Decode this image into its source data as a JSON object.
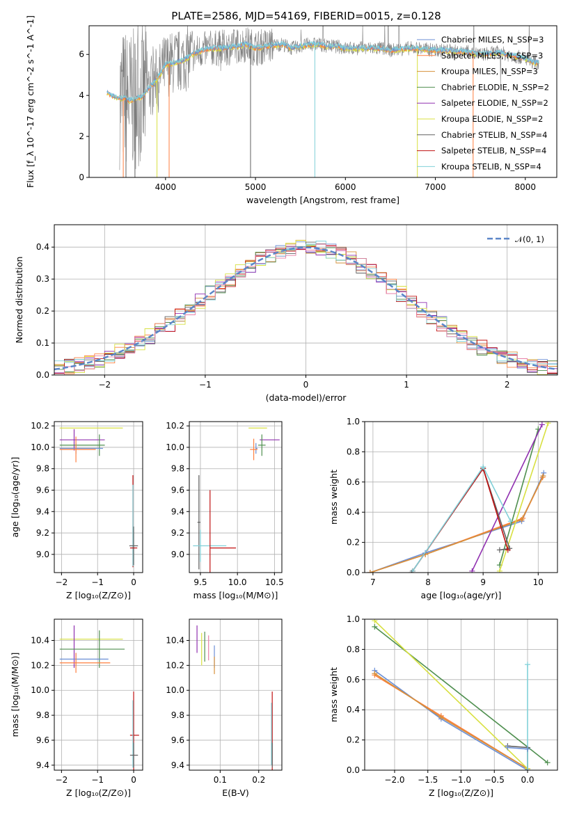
{
  "title": "PLATE=2586, MJD=54169, FIBERID=0015, z=0.128",
  "series_names": [
    "Chabrier MILES, N_SSP=3",
    "Salpeter MILES, N_SSP=3",
    "Kroupa MILES, N_SSP=3",
    "Chabrier ELODIE, N_SSP=2",
    "Salpeter ELODIE, N_SSP=2",
    "Kroupa ELODIE, N_SSP=2",
    "Chabrier STELIB, N_SSP=4",
    "Salpeter STELIB, N_SSP=4",
    "Kroupa STELIB, N_SSP=4"
  ],
  "colors": {
    "chabrier_miles": "#6b8fd6",
    "salpeter_miles": "#ff7f3f",
    "kroupa_miles": "#d6903a",
    "chabrier_elodie": "#4f8f4f",
    "salpeter_elodie": "#9030b0",
    "kroupa_elodie": "#d8e040",
    "chabrier_stelib": "#606060",
    "salpeter_stelib": "#c01010",
    "kroupa_stelib": "#80d0d8",
    "normal": "#5b86c8",
    "pink": "#e880a8",
    "data": "#808080"
  },
  "chart_data": [
    {
      "id": "spectrum",
      "type": "line",
      "title": "PLATE=2586, MJD=54169, FIBERID=0015, z=0.128",
      "xlabel": "wavelength [Angstrom, rest frame]",
      "ylabel": "Flux [f_λ 10^-17 erg cm^-2 s^-1 A^-1]",
      "xlim": [
        3150,
        8350
      ],
      "ylim": [
        0,
        7.4
      ],
      "xticks": [
        "4000",
        "5000",
        "6000",
        "7000",
        "8000"
      ],
      "yticks": [
        "0",
        "2",
        "4",
        "6"
      ],
      "legend_position": "top-right",
      "model_curve": {
        "x": [
          3350,
          3400,
          3450,
          3500,
          3550,
          3600,
          3650,
          3700,
          3750,
          3800,
          3850,
          3900,
          3950,
          4000,
          4100,
          4200,
          4300,
          4400,
          4500,
          4600,
          4700,
          4800,
          4900,
          5000,
          5100,
          5200,
          5300,
          5400,
          5500,
          5600,
          5700,
          5800,
          5900,
          6000,
          6100,
          6200,
          6300,
          6400,
          6500,
          6600,
          6700,
          6800,
          6900,
          7000,
          7100,
          7200,
          7300,
          7400,
          7500,
          7600,
          7700,
          7800,
          7900,
          8000,
          8100,
          8150
        ],
        "y": [
          4.15,
          4.0,
          3.9,
          3.85,
          3.9,
          3.75,
          3.8,
          3.9,
          3.95,
          4.3,
          4.5,
          4.8,
          5.1,
          5.5,
          5.6,
          5.7,
          6.0,
          6.2,
          6.3,
          6.3,
          6.35,
          6.4,
          6.5,
          6.3,
          6.4,
          6.45,
          6.5,
          6.3,
          6.4,
          6.5,
          6.5,
          6.4,
          6.4,
          6.3,
          6.3,
          6.3,
          6.3,
          6.3,
          6.2,
          6.25,
          6.3,
          6.3,
          6.25,
          6.2,
          6.2,
          6.15,
          6.15,
          6.1,
          6.0,
          6.05,
          6.1,
          6.0,
          5.9,
          5.8,
          5.6,
          5.6
        ]
      }
    },
    {
      "id": "residuals",
      "type": "line",
      "xlabel": "(data-model)/error",
      "ylabel": "Normed distribution",
      "xlim": [
        -2.5,
        2.5
      ],
      "ylim": [
        0,
        0.47
      ],
      "xticks": [
        "−2",
        "−1",
        "0",
        "1",
        "2"
      ],
      "yticks": [
        "0.0",
        "0.1",
        "0.2",
        "0.3",
        "0.4"
      ],
      "legend_position": "top-right",
      "series": [
        {
          "name": "𝒩(0, 1)",
          "function": "normal",
          "mean": 0,
          "sigma": 1
        }
      ],
      "bin_width": 0.1,
      "bin_start": -2.5
    },
    {
      "id": "age_vs_Z",
      "type": "scatter",
      "xlabel": "Z [log₁₀(Z/Z⊙)]",
      "ylabel": "age  [log₁₀(age/yr)]",
      "xlim": [
        -2.2,
        0.25
      ],
      "ylim": [
        8.83,
        10.24
      ],
      "xticks": [
        "−2",
        "−1",
        "0"
      ],
      "yticks": [
        "9.0",
        "9.2",
        "9.4",
        "9.6",
        "9.8",
        "10.0",
        "10.2"
      ],
      "points": [
        {
          "s": "kroupa_elodie",
          "x": -2.05,
          "xerr": [
            0.0,
            1.75
          ],
          "y": 10.18,
          "yerr": 0
        },
        {
          "s": "salpeter_elodie",
          "x": -1.65,
          "xerr": [
            0.4,
            0.85
          ],
          "y": 10.07,
          "yerr": 0.1
        },
        {
          "s": "chabrier_elodie",
          "x": -0.95,
          "xerr": [
            1.1,
            0.15
          ],
          "y": 10.02,
          "yerr": 0.1
        },
        {
          "s": "chabrier_miles",
          "x": -1.6,
          "xerr": [
            0.45,
            0.75
          ],
          "y": 9.99,
          "yerr": 0.05
        },
        {
          "s": "salpeter_miles",
          "x": -1.6,
          "xerr": [
            0.45,
            0.55
          ],
          "y": 9.98,
          "yerr": 0.12
        },
        {
          "s": "salpeter_stelib",
          "x": -0.02,
          "xerr": [
            0,
            0
          ],
          "y": 9.31,
          "yerr": 0.43
        },
        {
          "s": "kroupa_stelib",
          "x": -0.02,
          "xerr": [
            0,
            0
          ],
          "y": 9.27,
          "yerr": 0.38
        },
        {
          "s": "chabrier_stelib",
          "x": 0.0,
          "xerr": [
            0.12,
            0.12
          ],
          "y": 9.08,
          "yerr": 0.18
        },
        {
          "s": "salpeter_stelib",
          "x": 0.0,
          "xerr": [
            0.1,
            0.1
          ],
          "y": 9.06,
          "yerr": 0.0
        }
      ]
    },
    {
      "id": "age_vs_mass",
      "type": "scatter",
      "xlabel": "mass [log₁₀(M/M⊙)]",
      "ylabel": "",
      "xlim": [
        9.35,
        10.6
      ],
      "ylim": [
        8.83,
        10.24
      ],
      "xticks": [
        "9.5",
        "10.0",
        "10.5"
      ],
      "yticks": [
        "9.0",
        "9.2",
        "9.4",
        "9.6",
        "9.8",
        "10.0",
        "10.2"
      ],
      "points": [
        {
          "s": "kroupa_elodie",
          "x": 10.35,
          "xerr": [
            0.2,
            0.05
          ],
          "y": 10.18,
          "yerr": 0
        },
        {
          "s": "salpeter_elodie",
          "x": 10.5,
          "xerr": [
            0.2,
            0.07
          ],
          "y": 10.07,
          "yerr": 0
        },
        {
          "s": "chabrier_elodie",
          "x": 10.33,
          "xerr": [
            0.05,
            0.05
          ],
          "y": 10.02,
          "yerr": 0.1
        },
        {
          "s": "chabrier_miles",
          "x": 10.25,
          "xerr": [
            0.0,
            0.02
          ],
          "y": 9.99,
          "yerr": 0.05
        },
        {
          "s": "salpeter_miles",
          "x": 10.22,
          "xerr": [
            0.05,
            0.05
          ],
          "y": 9.98,
          "yerr": 0.1
        },
        {
          "s": "chabrier_stelib",
          "x": 9.48,
          "xerr": [
            0.02,
            0.02
          ],
          "y": 9.3,
          "yerr": 0.44
        },
        {
          "s": "kroupa_stelib",
          "x": 9.5,
          "xerr": [
            0.1,
            0.35
          ],
          "y": 9.08,
          "yerr": 0.15
        },
        {
          "s": "salpeter_stelib",
          "x": 9.63,
          "xerr": [
            0.0,
            0.35
          ],
          "y": 9.06,
          "yerr": 0.54
        }
      ]
    },
    {
      "id": "massweight_vs_age",
      "type": "line",
      "xlabel": "age  [log₁₀(age/yr)]",
      "ylabel": "mass weight",
      "xlim": [
        6.85,
        10.35
      ],
      "ylim": [
        0,
        1
      ],
      "xticks": [
        "7",
        "8",
        "9",
        "10"
      ],
      "yticks": [
        "0.0",
        "0.2",
        "0.4",
        "0.6",
        "0.8",
        "1.0"
      ],
      "series": [
        {
          "s": "chabrier_miles",
          "x": [
            6.95,
            7.95,
            9.7,
            10.1
          ],
          "y": [
            0.0,
            0.13,
            0.34,
            0.66
          ]
        },
        {
          "s": "salpeter_miles",
          "x": [
            6.95,
            7.95,
            9.72,
            10.08
          ],
          "y": [
            0.0,
            0.12,
            0.36,
            0.63
          ]
        },
        {
          "s": "kroupa_miles",
          "x": [
            6.95,
            7.95,
            9.7,
            10.09
          ],
          "y": [
            0.0,
            0.12,
            0.35,
            0.64
          ]
        },
        {
          "s": "chabrier_elodie",
          "x": [
            9.3,
            10.0
          ],
          "y": [
            0.05,
            0.95
          ]
        },
        {
          "s": "salpeter_elodie",
          "x": [
            8.8,
            10.07
          ],
          "y": [
            0.01,
            0.98
          ]
        },
        {
          "s": "kroupa_elodie",
          "x": [
            9.3,
            10.18
          ],
          "y": [
            0.01,
            0.99
          ]
        },
        {
          "s": "chabrier_stelib",
          "x": [
            7.7,
            9.0,
            9.48,
            9.3
          ],
          "y": [
            0.0,
            0.69,
            0.16,
            0.15
          ]
        },
        {
          "s": "salpeter_stelib",
          "x": [
            7.72,
            9.0,
            9.45
          ],
          "y": [
            0.01,
            0.69,
            0.15
          ]
        },
        {
          "s": "kroupa_stelib",
          "x": [
            7.72,
            9.0,
            9.5
          ],
          "y": [
            0.01,
            0.7,
            0.34
          ]
        }
      ]
    },
    {
      "id": "mass_vs_Z",
      "type": "scatter",
      "xlabel": "Z [log₁₀(Z/Z⊙)]",
      "ylabel": "mass [log₁₀(M/M⊙)]",
      "xlim": [
        -2.2,
        0.25
      ],
      "ylim": [
        9.36,
        10.57
      ],
      "xticks": [
        "−2",
        "−1",
        "0"
      ],
      "yticks": [
        "9.4",
        "9.6",
        "9.8",
        "10.0",
        "10.2",
        "10.4"
      ],
      "points": [
        {
          "s": "kroupa_elodie",
          "x": -2.05,
          "xerr": [
            0.0,
            1.75
          ],
          "y": 10.41,
          "yerr": 0
        },
        {
          "s": "salpeter_elodie",
          "x": -1.65,
          "xerr": [
            0,
            0
          ],
          "y": 10.35,
          "yerr": 0.17
        },
        {
          "s": "chabrier_elodie",
          "x": -0.95,
          "xerr": [
            1.1,
            0.7
          ],
          "y": 10.33,
          "yerr": 0.15
        },
        {
          "s": "chabrier_miles",
          "x": -1.6,
          "xerr": [
            0.45,
            0.9
          ],
          "y": 10.25,
          "yerr": 0.05
        },
        {
          "s": "salpeter_miles",
          "x": -1.6,
          "xerr": [
            0.45,
            0.95
          ],
          "y": 10.22,
          "yerr": 0.08
        },
        {
          "s": "salpeter_stelib",
          "x": 0.0,
          "xerr": [
            0.1,
            0.15
          ],
          "y": 9.64,
          "yerr": 0.35
        },
        {
          "s": "kroupa_stelib",
          "x": -0.02,
          "xerr": [
            0,
            0
          ],
          "y": 9.65,
          "yerr": 0.27
        },
        {
          "s": "chabrier_stelib",
          "x": 0.0,
          "xerr": [
            0.1,
            0.12
          ],
          "y": 9.48,
          "yerr": 0.1
        }
      ]
    },
    {
      "id": "mass_vs_ebv",
      "type": "scatter",
      "xlabel": "E(B-V)",
      "ylabel": "",
      "xlim": [
        0.02,
        0.26
      ],
      "ylim": [
        9.36,
        10.57
      ],
      "xticks": [
        "0.1",
        "0.2"
      ],
      "yticks": [
        "9.4",
        "9.6",
        "9.8",
        "10.0",
        "10.2",
        "10.4"
      ],
      "points": [
        {
          "s": "salpeter_elodie",
          "x": 0.04,
          "xerr": [
            0,
            0
          ],
          "y": 10.41,
          "yerr": 0.11
        },
        {
          "s": "kroupa_elodie",
          "x": 0.052,
          "xerr": [
            0,
            0
          ],
          "y": 10.33,
          "yerr": 0.13
        },
        {
          "s": "chabrier_elodie",
          "x": 0.06,
          "xerr": [
            0,
            0
          ],
          "y": 10.35,
          "yerr": 0.12
        },
        {
          "s": "pink",
          "x": 0.07,
          "xerr": [
            0,
            0
          ],
          "y": 10.34,
          "yerr": 0.1
        },
        {
          "s": "chabrier_miles",
          "x": 0.085,
          "xerr": [
            0,
            0
          ],
          "y": 10.27,
          "yerr": 0.09
        },
        {
          "s": "kroupa_miles",
          "x": 0.085,
          "xerr": [
            0,
            0
          ],
          "y": 10.2,
          "yerr": 0.07
        },
        {
          "s": "salpeter_stelib",
          "x": 0.235,
          "xerr": [
            0,
            0
          ],
          "y": 9.64,
          "yerr": 0.35
        },
        {
          "s": "kroupa_stelib",
          "x": 0.233,
          "xerr": [
            0,
            0
          ],
          "y": 9.65,
          "yerr": 0.25
        },
        {
          "s": "chabrier_stelib",
          "x": 0.235,
          "xerr": [
            0,
            0
          ],
          "y": 9.48,
          "yerr": 0.1
        }
      ]
    },
    {
      "id": "massweight_vs_Z",
      "type": "line",
      "xlabel": "Z [log₁₀(Z/Z⊙)]",
      "ylabel": "mass weight",
      "xlim": [
        -2.45,
        0.45
      ],
      "ylim": [
        0,
        1
      ],
      "xticks": [
        "−2.0",
        "−1.5",
        "−1.0",
        "−0.5",
        "0.0"
      ],
      "yticks": [
        "0.0",
        "0.2",
        "0.4",
        "0.6",
        "0.8",
        "1.0"
      ],
      "series": [
        {
          "s": "chabrier_miles",
          "x": [
            -2.3,
            -1.3,
            0.0
          ],
          "y": [
            0.66,
            0.34,
            0.0
          ]
        },
        {
          "s": "salpeter_miles",
          "x": [
            -2.3,
            -1.3,
            0.0
          ],
          "y": [
            0.63,
            0.36,
            0.01
          ]
        },
        {
          "s": "kroupa_miles",
          "x": [
            -2.3,
            -1.3,
            0.0
          ],
          "y": [
            0.64,
            0.35,
            0.01
          ]
        },
        {
          "s": "chabrier_elodie",
          "x": [
            -2.3,
            0.3
          ],
          "y": [
            0.95,
            0.05
          ]
        },
        {
          "s": "kroupa_elodie",
          "x": [
            -2.3,
            0.0
          ],
          "y": [
            0.99,
            0.01
          ]
        },
        {
          "s": "chabrier_stelib",
          "x": [
            -0.3,
            0.0,
            0.0
          ],
          "y": [
            0.16,
            0.15,
            0.0
          ]
        },
        {
          "s": "kroupa_stelib",
          "x": [
            0.0,
            0.0
          ],
          "y": [
            0.0,
            0.7
          ]
        },
        {
          "s": "chabrier_miles",
          "x": [
            -0.3,
            0.0
          ],
          "y": [
            0.15,
            0.14
          ]
        }
      ]
    }
  ]
}
